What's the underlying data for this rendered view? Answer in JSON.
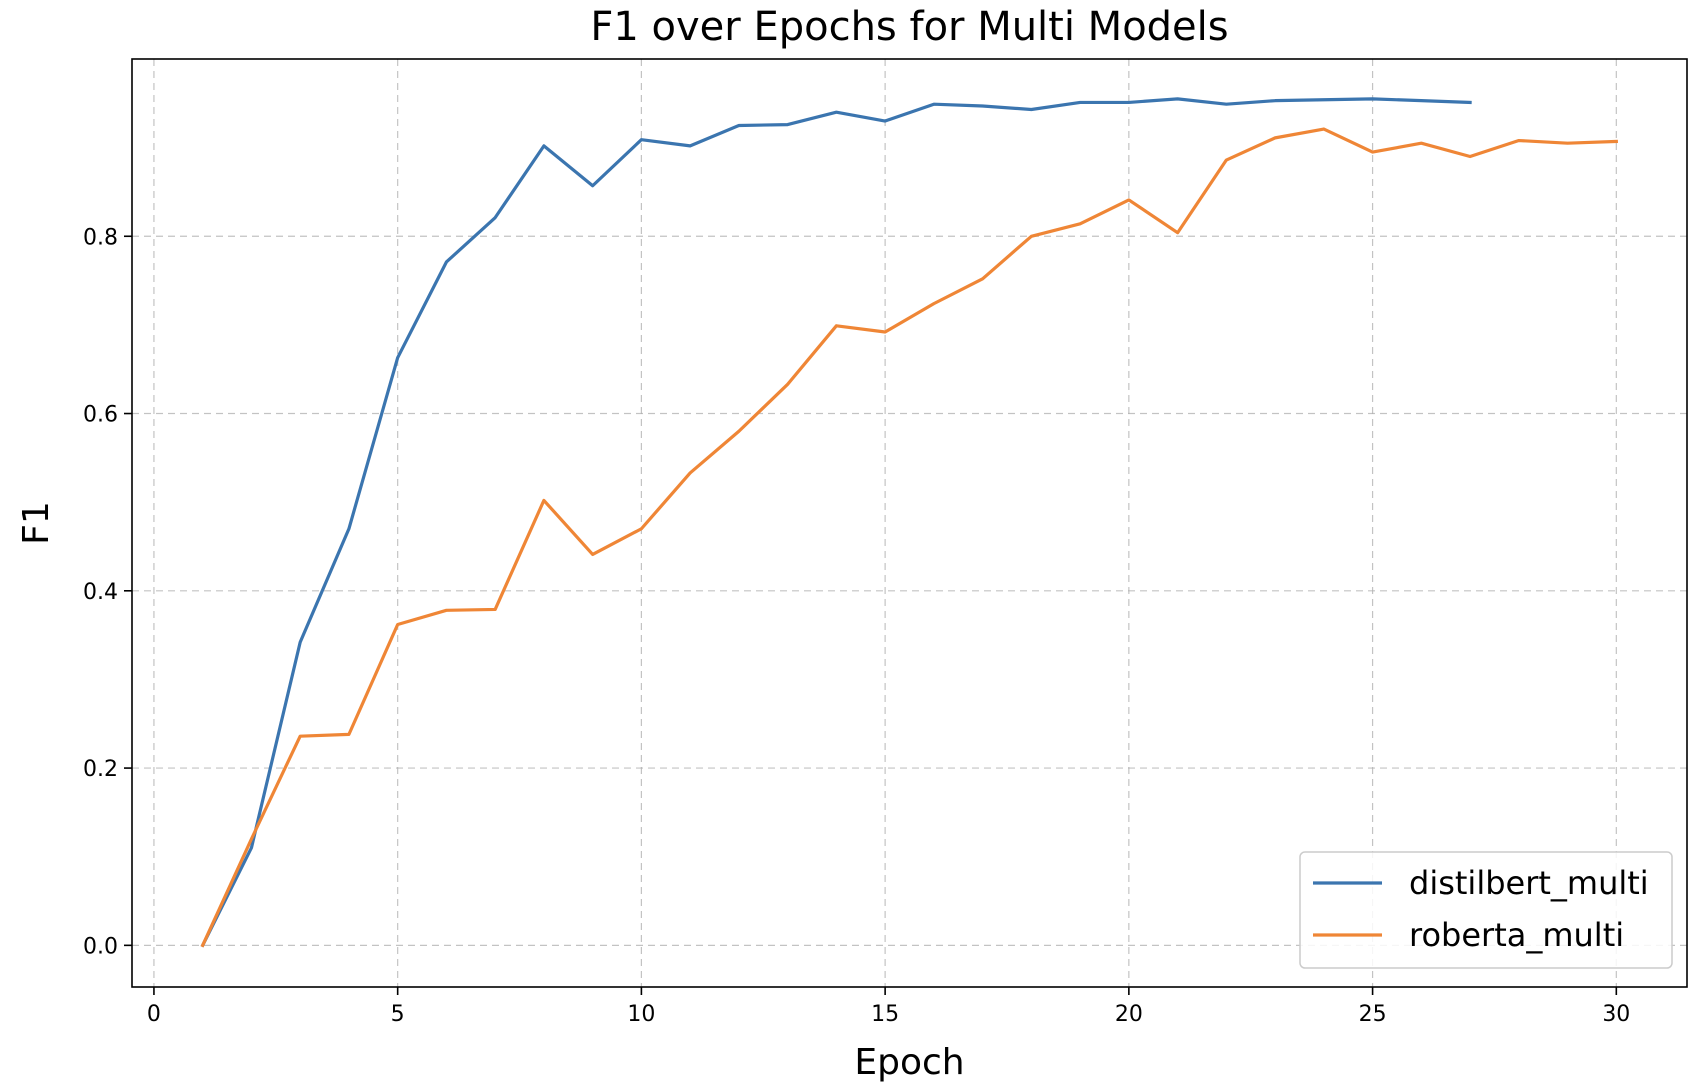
{
  "chart_data": {
    "type": "line",
    "title": "F1 over Epochs for Multi Models",
    "xlabel": "Epoch",
    "ylabel": "F1",
    "xlim": [
      -0.45,
      31.45
    ],
    "ylim": [
      -0.047,
      1.0
    ],
    "xticks": [
      0,
      5,
      10,
      15,
      20,
      25,
      30
    ],
    "yticks": [
      0.0,
      0.2,
      0.4,
      0.6,
      0.8
    ],
    "ytick_labels": [
      "0.0",
      "0.2",
      "0.4",
      "0.6",
      "0.8"
    ],
    "grid": true,
    "legend_position": "lower-right",
    "series": [
      {
        "name": "distilbert_multi",
        "color": "#3b75af",
        "x": [
          1,
          2,
          3,
          4,
          5,
          6,
          7,
          8,
          9,
          10,
          11,
          12,
          13,
          14,
          15,
          16,
          17,
          18,
          19,
          20,
          21,
          22,
          23,
          24,
          25,
          26,
          27
        ],
        "values": [
          0.0,
          0.11,
          0.342,
          0.47,
          0.663,
          0.771,
          0.821,
          0.902,
          0.857,
          0.909,
          0.902,
          0.925,
          0.926,
          0.94,
          0.93,
          0.949,
          0.947,
          0.943,
          0.951,
          0.951,
          0.955,
          0.949,
          0.953,
          0.954,
          0.955,
          0.953,
          0.951
        ]
      },
      {
        "name": "roberta_multi",
        "color": "#ef8636",
        "x": [
          1,
          2,
          3,
          4,
          5,
          6,
          7,
          8,
          9,
          10,
          11,
          12,
          13,
          14,
          15,
          16,
          17,
          18,
          19,
          20,
          21,
          22,
          23,
          24,
          25,
          26,
          27,
          28,
          29,
          30
        ],
        "values": [
          0.0,
          0.12,
          0.236,
          0.238,
          0.362,
          0.378,
          0.379,
          0.502,
          0.441,
          0.47,
          0.533,
          0.58,
          0.633,
          0.699,
          0.692,
          0.724,
          0.752,
          0.8,
          0.814,
          0.841,
          0.804,
          0.886,
          0.911,
          0.921,
          0.895,
          0.905,
          0.89,
          0.908,
          0.905,
          0.907
        ]
      }
    ]
  }
}
